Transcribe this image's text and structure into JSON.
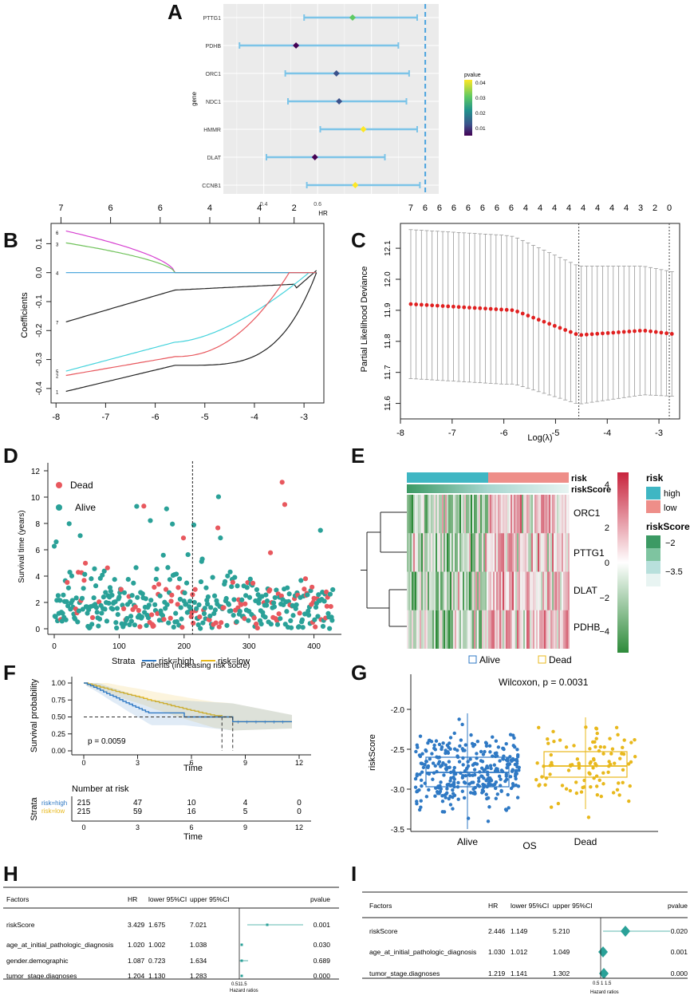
{
  "panels": {
    "A": "A",
    "B": "B",
    "C": "C",
    "D": "D",
    "E": "E",
    "F": "F",
    "G": "G",
    "H": "H",
    "I": "I"
  },
  "colors": {
    "teal": "#2aa198",
    "red": "#e8585e",
    "blue": "#2f79c4",
    "gold": "#e8b81c",
    "ciblue": "#7cc4e8",
    "dash": "#4aa3df"
  },
  "chart_data": [
    {
      "id": "A",
      "type": "forest",
      "xlabel": "HR",
      "ylabel": "gene",
      "xticks": [
        0.4,
        0.6
      ],
      "genes": [
        "PTTG1",
        "PDHB",
        "ORC1",
        "NDC1",
        "HMMR",
        "DLAT",
        "CCNB1"
      ],
      "hr": [
        0.73,
        0.52,
        0.67,
        0.68,
        0.77,
        0.59,
        0.74
      ],
      "low": [
        0.55,
        0.31,
        0.48,
        0.49,
        0.61,
        0.41,
        0.56
      ],
      "high": [
        0.97,
        0.9,
        0.94,
        0.93,
        0.97,
        0.85,
        0.98
      ],
      "pvalue": [
        0.036,
        0.008,
        0.017,
        0.018,
        0.04,
        0.001,
        0.042
      ],
      "ref_line": 1.0,
      "legend_title": "pvalue",
      "legend_ticks": [
        "0.04",
        "0.03",
        "0.02",
        "0.01"
      ],
      "xlim": [
        0.25,
        1.05
      ]
    },
    {
      "id": "B",
      "type": "line",
      "ylabel": "Coefficients",
      "xticks": [
        -8,
        -7,
        -6,
        -5,
        -4,
        -3
      ],
      "yticks": [
        "0.1",
        "0.0",
        "-0.1",
        "-0.2",
        "-0.3",
        "-0.4"
      ],
      "top_ticks": [
        "7",
        "6",
        "6",
        "4",
        "4",
        "2"
      ],
      "series_labels": [
        "6",
        "3",
        "4",
        "7",
        "5",
        "2",
        "1"
      ]
    },
    {
      "id": "C",
      "type": "scatter_errorbar",
      "ylabel": "Partial Likelihood Deviance",
      "xlabel": "Log(λ)",
      "xticks": [
        -8,
        -7,
        -6,
        -5,
        -4,
        -3
      ],
      "yticks": [
        "12.1",
        "12.0",
        "11.9",
        "11.8",
        "11.7",
        "11.6"
      ],
      "top_ticks": [
        "7",
        "6",
        "6",
        "6",
        "6",
        "6",
        "6",
        "6",
        "4",
        "4",
        "4",
        "4",
        "4",
        "4",
        "4",
        "4",
        "3",
        "2",
        "0"
      ],
      "lambda_min": -4.55,
      "lambda_1se": -2.8
    },
    {
      "id": "D",
      "type": "scatter",
      "ylabel": "Survival time (years)",
      "xlabel": "Patients (increasing risk socre)",
      "xticks": [
        "0",
        "100",
        "200",
        "300",
        "400"
      ],
      "yticks": [
        "0",
        "2",
        "4",
        "6",
        "8",
        "10",
        "12"
      ],
      "legend": [
        "Dead",
        "Alive"
      ],
      "cutoff": 213
    },
    {
      "id": "E",
      "type": "heatmap",
      "genes": [
        "ORC1",
        "PTTG1",
        "DLAT",
        "PDHB"
      ],
      "annotations": [
        "risk",
        "riskScore"
      ],
      "scale_ticks": [
        "4",
        "2",
        "0",
        "−2",
        "−4"
      ],
      "risk_legend_title": "risk",
      "risk_levels": [
        "high",
        "low"
      ],
      "score_legend_title": "riskScore",
      "score_ticks": [
        "−2",
        "−3.5"
      ]
    },
    {
      "id": "F",
      "type": "survival",
      "strata_title": "Strata",
      "strata": [
        "risk=high",
        "risk=low"
      ],
      "ylabel": "Survival probability",
      "xlabel": "Time",
      "xticks": [
        "0",
        "3",
        "6",
        "9",
        "12"
      ],
      "yticks": [
        "1.00",
        "0.75",
        "0.50",
        "0.25",
        "0.00"
      ],
      "pvalue": "p = 0.0059",
      "risk_table_title": "Number at risk",
      "risk_table_ylabel": "Strata",
      "risk_table": {
        "risk=high": [
          "215",
          "47",
          "10",
          "4",
          "0"
        ],
        "risk=low": [
          "215",
          "59",
          "16",
          "5",
          "0"
        ]
      }
    },
    {
      "id": "G",
      "type": "boxplot",
      "legend": [
        "Alive",
        "Dead"
      ],
      "stat": "Wilcoxon, p = 0.0031",
      "ylabel": "riskScore",
      "xlabel": "OS",
      "categories": [
        "Alive",
        "Dead"
      ],
      "yticks": [
        "-2.0",
        "-2.5",
        "-3.0",
        "-3.5"
      ],
      "medians": [
        -2.79,
        -2.71
      ],
      "q1": [
        -2.97,
        -2.85
      ],
      "q3": [
        -2.6,
        -2.53
      ]
    }
  ],
  "tableH": {
    "headers": [
      "Factors",
      "HR",
      "lower 95%CI",
      "upper 95%CI",
      "pvalue"
    ],
    "rows": [
      [
        "riskScore",
        "3.429",
        "1.675",
        "7.021",
        "0.001"
      ],
      [
        "age_at_initial_pathologic_diagnosis",
        "1.020",
        "1.002",
        "1.038",
        "0.030"
      ],
      [
        "gender.demographic",
        "1.087",
        "0.723",
        "1.634",
        "0.689"
      ],
      [
        "tumor_stage.diagnoses",
        "1.204",
        "1.130",
        "1.283",
        "0.000"
      ]
    ],
    "axis_ticks": "0.511.5",
    "axis_label": "Hazard ratios"
  },
  "tableI": {
    "headers": [
      "Factors",
      "HR",
      "lower 95%CI",
      "upper 95%CI",
      "pvalue"
    ],
    "rows": [
      [
        "riskScore",
        "2.446",
        "1.149",
        "5.210",
        "0.020"
      ],
      [
        "age_at_initial_pathologic_diagnosis",
        "1.030",
        "1.012",
        "1.049",
        "0.001"
      ],
      [
        "tumor_stage.diagnoses",
        "1.219",
        "1.141",
        "1.302",
        "0.000"
      ]
    ],
    "axis_ticks": "0.5 1 1.5",
    "axis_label": "Hazard ratios"
  }
}
